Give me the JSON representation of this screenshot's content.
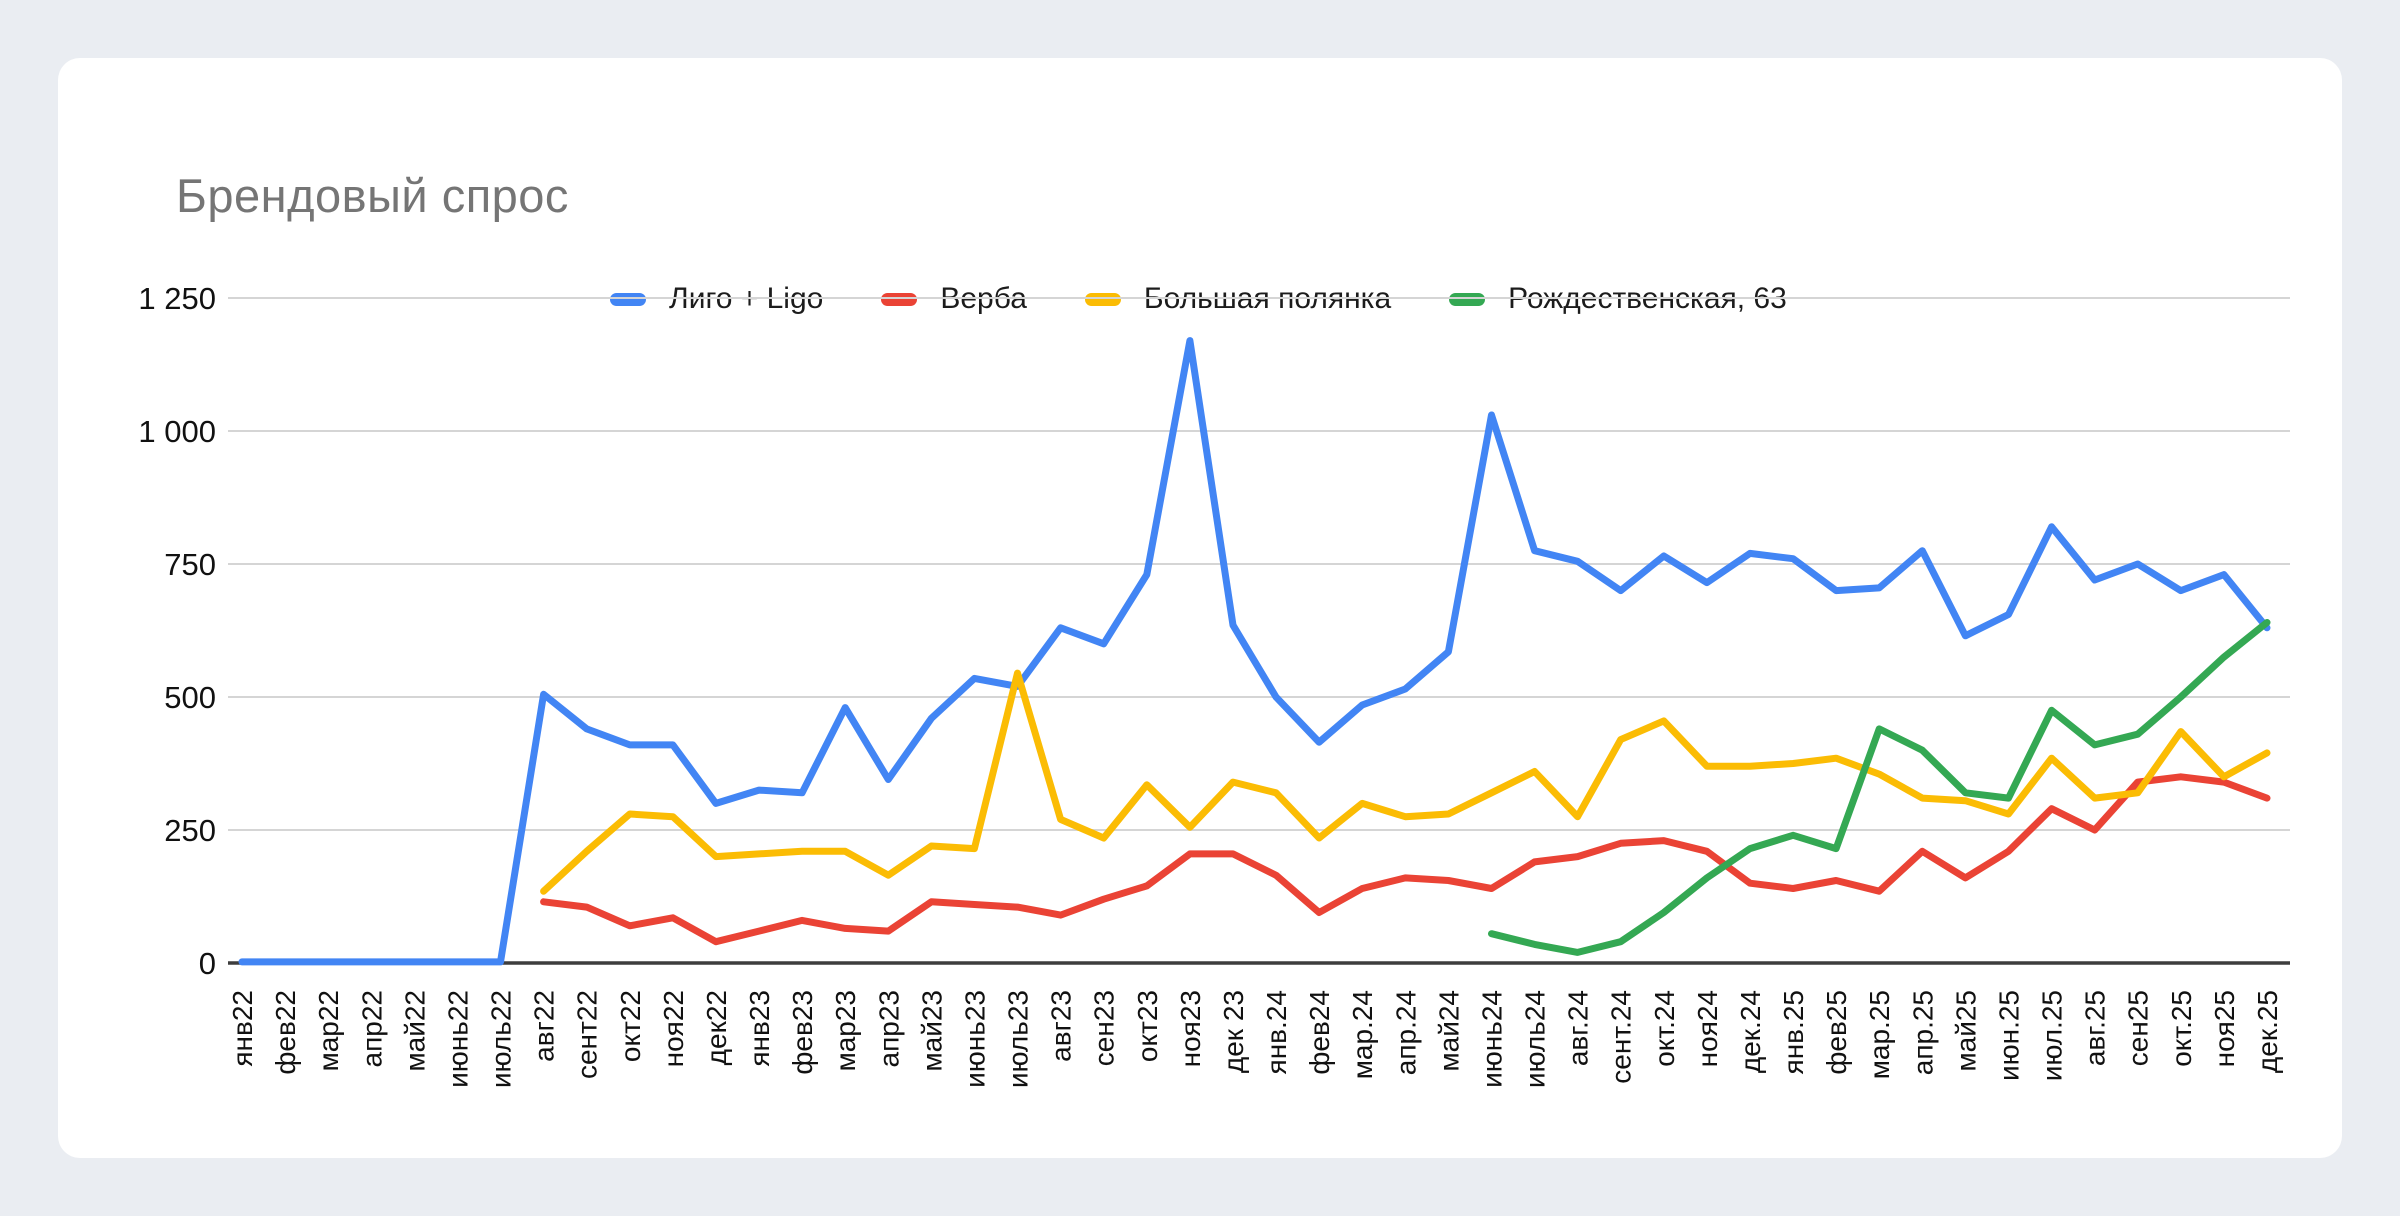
{
  "page": {
    "background": "#EAEDF2",
    "card_background": "#FFFFFF"
  },
  "header": {
    "title": "Брендовый спрос"
  },
  "chart_data": {
    "type": "line",
    "title": "Брендовый спрос",
    "xlabel": "",
    "ylabel": "",
    "ylim": [
      0,
      1250
    ],
    "y_tick_step": 250,
    "y_ticks": [
      "0",
      "250",
      "500",
      "750",
      "1 000",
      "1 250"
    ],
    "grid": true,
    "legend_position": "top",
    "gridline_color": "#D5D5D5",
    "axis_color": "#3D3D3D",
    "categories": [
      "янв22",
      "фев22",
      "мар22",
      "апр22",
      "май22",
      "июнь22",
      "июль22",
      "авг22",
      "сент22",
      "окт22",
      "ноя22",
      "дек22",
      "янв23",
      "фев23",
      "мар23",
      "апр23",
      "май23",
      "июнь23",
      "июль23",
      "авг23",
      "сен23",
      "окт23",
      "ноя23",
      "дек 23",
      "янв.24",
      "фев24",
      "мар.24",
      "апр.24",
      "май24",
      "июнь24",
      "июль24",
      "авг.24",
      "сент.24",
      "окт.24",
      "ноя24",
      "дек.24",
      "янв.25",
      "фев25",
      "мар.25",
      "апр.25",
      "май25",
      "июн.25",
      "июл.25",
      "авг.25",
      "сен25",
      "окт.25",
      "ноя25",
      "дек.25"
    ],
    "series": [
      {
        "name": "Лиго + Ligo",
        "color": "#4285F4",
        "values": [
          2,
          2,
          2,
          2,
          2,
          2,
          2,
          505,
          440,
          410,
          410,
          300,
          325,
          320,
          480,
          345,
          460,
          535,
          520,
          630,
          600,
          730,
          1170,
          635,
          500,
          415,
          485,
          515,
          585,
          1030,
          775,
          755,
          700,
          765,
          715,
          770,
          760,
          700,
          705,
          775,
          615,
          655,
          820,
          720,
          750,
          700,
          730,
          630
        ]
      },
      {
        "name": "Верба",
        "color": "#EA4335",
        "values": [
          null,
          null,
          null,
          null,
          null,
          null,
          null,
          115,
          105,
          70,
          85,
          40,
          60,
          80,
          65,
          60,
          115,
          110,
          105,
          90,
          120,
          145,
          205,
          205,
          165,
          95,
          140,
          160,
          155,
          140,
          190,
          200,
          225,
          230,
          210,
          150,
          140,
          155,
          135,
          210,
          160,
          210,
          290,
          250,
          340,
          350,
          340,
          310
        ]
      },
      {
        "name": "Большая полянка",
        "color": "#FBBC04",
        "values": [
          null,
          null,
          null,
          null,
          null,
          null,
          null,
          135,
          210,
          280,
          275,
          200,
          205,
          210,
          210,
          165,
          220,
          215,
          545,
          270,
          235,
          335,
          255,
          340,
          320,
          235,
          300,
          275,
          280,
          320,
          360,
          275,
          420,
          455,
          370,
          370,
          375,
          385,
          355,
          310,
          305,
          280,
          385,
          310,
          320,
          435,
          350,
          395
        ]
      },
      {
        "name": "Рождественская, 63",
        "color": "#34A853",
        "values": [
          null,
          null,
          null,
          null,
          null,
          null,
          null,
          null,
          null,
          null,
          null,
          null,
          null,
          null,
          null,
          null,
          null,
          null,
          null,
          null,
          null,
          null,
          null,
          null,
          null,
          null,
          null,
          null,
          null,
          55,
          35,
          20,
          40,
          95,
          160,
          215,
          240,
          215,
          440,
          400,
          320,
          310,
          475,
          410,
          430,
          500,
          575,
          640
        ]
      }
    ]
  }
}
